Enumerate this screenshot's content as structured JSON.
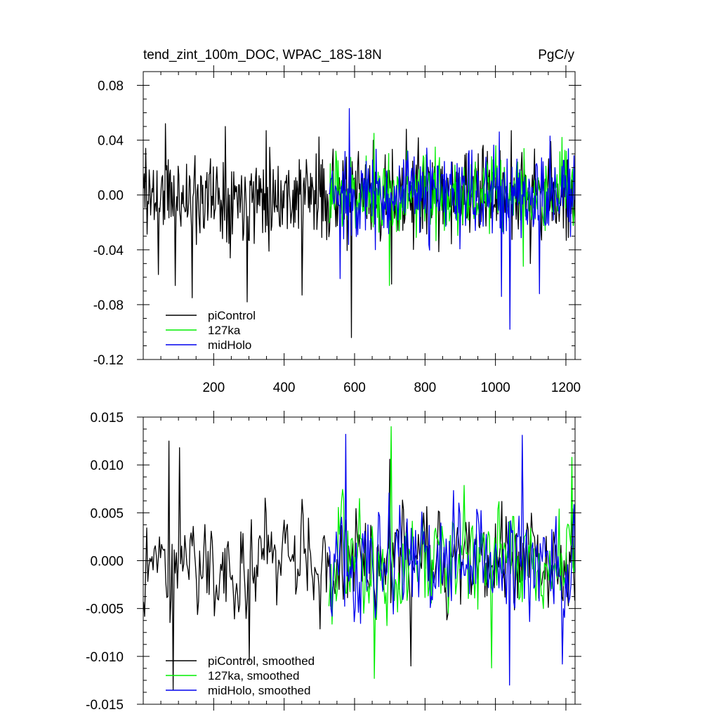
{
  "chart_data": [
    {
      "type": "line",
      "title": "tend_zint_100m_DOC, WPAC_18S-18N",
      "units": "PgC/y",
      "xlim": [
        0,
        1226
      ],
      "ylim": [
        -0.12,
        0.09
      ],
      "xticks": [
        200,
        400,
        600,
        800,
        1000,
        1200
      ],
      "yticks": [
        "0.08",
        "0.04",
        "0.00",
        "-0.04",
        "-0.08",
        "-0.12"
      ],
      "yticks_values": [
        0.08,
        0.04,
        0.0,
        -0.04,
        -0.08,
        -0.12
      ],
      "legend_position": "bottom-left",
      "series": [
        {
          "name": "piControl",
          "color": "#000000",
          "x_range": [
            1,
            1226
          ],
          "amplitude": 0.019,
          "seed": 11,
          "points": [
            [
              8,
              0.034
            ],
            [
              44,
              -0.058
            ],
            [
              63,
              0.052
            ],
            [
              92,
              -0.066
            ],
            [
              140,
              -0.075
            ],
            [
              234,
              0.05
            ],
            [
              296,
              -0.078
            ],
            [
              350,
              0.047
            ],
            [
              452,
              -0.073
            ],
            [
              592,
              -0.104
            ],
            [
              705,
              -0.065
            ],
            [
              748,
              0.048
            ],
            [
              1045,
              0.047
            ],
            [
              1100,
              -0.05
            ]
          ]
        },
        {
          "name": "127ka",
          "color": "#00ee00",
          "x_range": [
            527,
            1226
          ],
          "amplitude": 0.017,
          "seed": 23,
          "points": [
            [
              656,
              0.045
            ],
            [
              700,
              -0.066
            ],
            [
              830,
              0.035
            ],
            [
              1080,
              -0.052
            ],
            [
              1190,
              0.042
            ]
          ]
        },
        {
          "name": "midHolo",
          "color": "#0000ee",
          "x_range": [
            527,
            1226
          ],
          "amplitude": 0.018,
          "seed": 37,
          "points": [
            [
              559,
              -0.061
            ],
            [
              586,
              0.063
            ],
            [
              1012,
              0.046
            ],
            [
              1018,
              -0.074
            ],
            [
              1042,
              -0.098
            ],
            [
              1126,
              -0.072
            ],
            [
              1156,
              0.043
            ]
          ]
        }
      ]
    },
    {
      "type": "line",
      "xlim": [
        0,
        1226
      ],
      "ylim": [
        -0.015,
        0.015
      ],
      "yticks": [
        "0.015",
        "0.010",
        "0.005",
        "0.000",
        "-0.005",
        "-0.010",
        "-0.015"
      ],
      "yticks_values": [
        0.015,
        0.01,
        0.005,
        0.0,
        -0.005,
        -0.01,
        -0.015
      ],
      "xticks_minor": [
        200,
        400,
        600,
        800,
        1000,
        1200
      ],
      "legend_position": "bottom-left",
      "series": [
        {
          "name": "piControl, smoothed",
          "color": "#000000",
          "x_range": [
            1,
            1226
          ],
          "amplitude": 0.0045,
          "seed": 51,
          "points": [
            [
              74,
              0.0125
            ],
            [
              84,
              -0.0135
            ],
            [
              103,
              0.0118
            ],
            [
              300,
              -0.0105
            ],
            [
              700,
              0.0106
            ],
            [
              760,
              -0.011
            ]
          ]
        },
        {
          "name": "127ka, smoothed",
          "color": "#00ee00",
          "x_range": [
            527,
            1226
          ],
          "amplitude": 0.0048,
          "seed": 63,
          "points": [
            [
              657,
              -0.0123
            ],
            [
              703,
              0.014
            ],
            [
              990,
              -0.0112
            ],
            [
              1218,
              0.0108
            ]
          ]
        },
        {
          "name": "midHolo, smoothed",
          "color": "#0000ee",
          "x_range": [
            527,
            1226
          ],
          "amplitude": 0.0048,
          "seed": 79,
          "points": [
            [
              576,
              0.0132
            ],
            [
              1040,
              -0.013
            ],
            [
              1075,
              0.0131
            ],
            [
              1190,
              -0.0108
            ]
          ]
        }
      ]
    }
  ]
}
